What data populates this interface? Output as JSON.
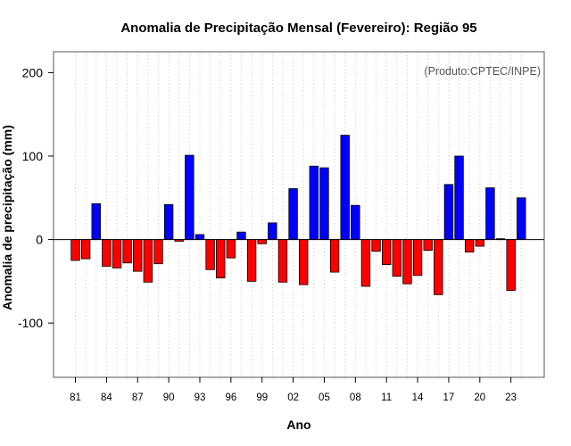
{
  "chart_data": {
    "type": "bar",
    "title": "Anomalia de Precipitação Mensal (Fevereiro): Região 95",
    "xlabel": "Ano",
    "ylabel": "Anomalia de precipitação (mm)",
    "credit": "(Produto:CPTEC/INPE)",
    "ylim": [
      -165,
      225
    ],
    "yticks": [
      -100,
      0,
      100,
      200
    ],
    "categories": [
      "81",
      "82",
      "83",
      "84",
      "85",
      "86",
      "87",
      "88",
      "89",
      "90",
      "91",
      "92",
      "93",
      "94",
      "95",
      "96",
      "97",
      "98",
      "99",
      "00",
      "01",
      "02",
      "03",
      "04",
      "05",
      "06",
      "07",
      "08",
      "09",
      "10",
      "11",
      "12",
      "13",
      "14",
      "15",
      "16",
      "17",
      "18",
      "19",
      "20",
      "21",
      "22",
      "23",
      "24"
    ],
    "xtick_labels": [
      "81",
      "84",
      "87",
      "90",
      "93",
      "96",
      "99",
      "02",
      "05",
      "08",
      "11",
      "14",
      "17",
      "20",
      "23"
    ],
    "values": [
      -25,
      -23,
      43,
      -32,
      -34,
      -28,
      -38,
      -51,
      -29,
      42,
      -2,
      101,
      6,
      -36,
      -46,
      -22,
      9,
      -50,
      -5,
      20,
      -51,
      61,
      -54,
      88,
      86,
      -39,
      125,
      41,
      -56,
      -14,
      -30,
      -44,
      -53,
      -43,
      -13,
      -66,
      66,
      100,
      -15,
      -8,
      62,
      1,
      -61,
      50
    ],
    "colors": {
      "positive": "#0000ff",
      "negative": "#ff0000",
      "frame": "#555555",
      "grid": "#c8c8c8"
    }
  }
}
